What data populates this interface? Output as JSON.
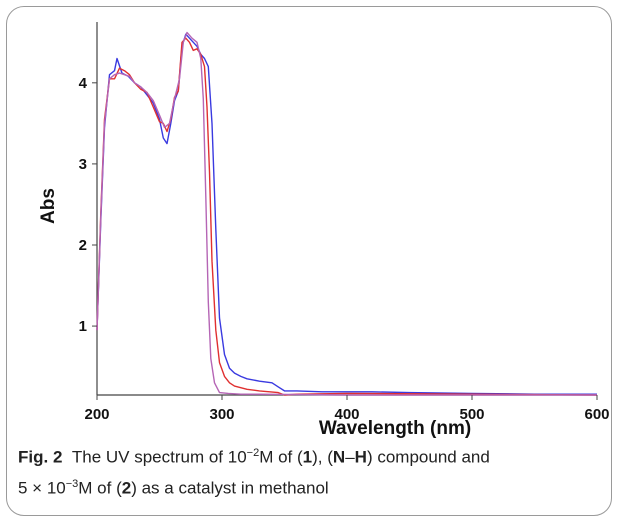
{
  "caption": {
    "label": "Fig. 2",
    "line1_a": "The UV spectrum of 10",
    "line1_sup": "−2",
    "line1_b": "M of (",
    "line1_c1": "1",
    "line1_d": "), (",
    "line1_n": "N",
    "line1_dash": "–",
    "line1_h": "H",
    "line1_e": ") compound and",
    "line2_a": "5 × 10",
    "line2_sup": "−3",
    "line2_b": "M of (",
    "line2_c2": "2",
    "line2_c": ") as a catalyst in methanol"
  },
  "chart_data": {
    "type": "line",
    "xlabel": "Wavelength (nm)",
    "ylabel": "Abs",
    "xlim": [
      200,
      600
    ],
    "ylim": [
      0.15,
      4.75
    ],
    "x_ticks": [
      200,
      300,
      400,
      500,
      600
    ],
    "y_ticks": [
      1,
      2,
      3,
      4
    ],
    "grid": false,
    "legend": "none",
    "series": [
      {
        "color": "#3a3ae0",
        "x": [
          200,
          203,
          206,
          210,
          214,
          216,
          220,
          225,
          230,
          235,
          240,
          245,
          250,
          253,
          256,
          259,
          262,
          265,
          268,
          271,
          274,
          277,
          280,
          283,
          286,
          289,
          292,
          295,
          298,
          302,
          306,
          310,
          315,
          320,
          330,
          340,
          345,
          350,
          360,
          380,
          400,
          420,
          450,
          500,
          550,
          600
        ],
        "y": [
          0.95,
          2.3,
          3.45,
          4.1,
          4.15,
          4.3,
          4.12,
          4.08,
          4.0,
          3.95,
          3.85,
          3.75,
          3.55,
          3.32,
          3.25,
          3.5,
          3.78,
          3.9,
          4.45,
          4.6,
          4.55,
          4.5,
          4.45,
          4.35,
          4.3,
          4.2,
          3.5,
          2.2,
          1.1,
          0.65,
          0.48,
          0.42,
          0.38,
          0.35,
          0.32,
          0.3,
          0.25,
          0.2,
          0.2,
          0.19,
          0.19,
          0.19,
          0.18,
          0.17,
          0.16,
          0.16
        ]
      },
      {
        "color": "#e03030",
        "x": [
          200,
          203,
          206,
          210,
          214,
          218,
          222,
          226,
          230,
          235,
          240,
          245,
          250,
          253,
          256,
          259,
          262,
          265,
          268,
          271,
          274,
          277,
          280,
          283,
          286,
          288,
          290,
          292,
          295,
          298,
          302,
          306,
          310,
          320,
          330,
          345,
          350,
          360,
          400,
          500,
          600
        ],
        "y": [
          0.95,
          2.4,
          3.55,
          4.05,
          4.05,
          4.18,
          4.15,
          4.1,
          4.0,
          3.92,
          3.88,
          3.7,
          3.52,
          3.5,
          3.4,
          3.55,
          3.82,
          3.9,
          4.5,
          4.55,
          4.5,
          4.4,
          4.42,
          4.35,
          4.2,
          3.7,
          2.9,
          1.8,
          0.95,
          0.55,
          0.38,
          0.3,
          0.26,
          0.22,
          0.2,
          0.18,
          0.15,
          0.16,
          0.17,
          0.16,
          0.15
        ]
      },
      {
        "color": "#b565b5",
        "x": [
          200,
          203,
          206,
          210,
          214,
          218,
          222,
          226,
          230,
          235,
          240,
          245,
          250,
          254,
          258,
          262,
          266,
          269,
          272,
          276,
          280,
          283,
          285,
          287,
          289,
          291,
          294,
          298,
          305,
          315,
          330,
          400,
          500,
          600
        ],
        "y": [
          0.95,
          2.35,
          3.5,
          4.05,
          4.1,
          4.12,
          4.1,
          4.08,
          4.0,
          3.95,
          3.88,
          3.78,
          3.6,
          3.45,
          3.5,
          3.8,
          4.05,
          4.5,
          4.62,
          4.55,
          4.5,
          4.3,
          3.8,
          2.6,
          1.3,
          0.6,
          0.3,
          0.18,
          0.17,
          0.16,
          0.16,
          0.15,
          0.15,
          0.15
        ]
      }
    ]
  }
}
